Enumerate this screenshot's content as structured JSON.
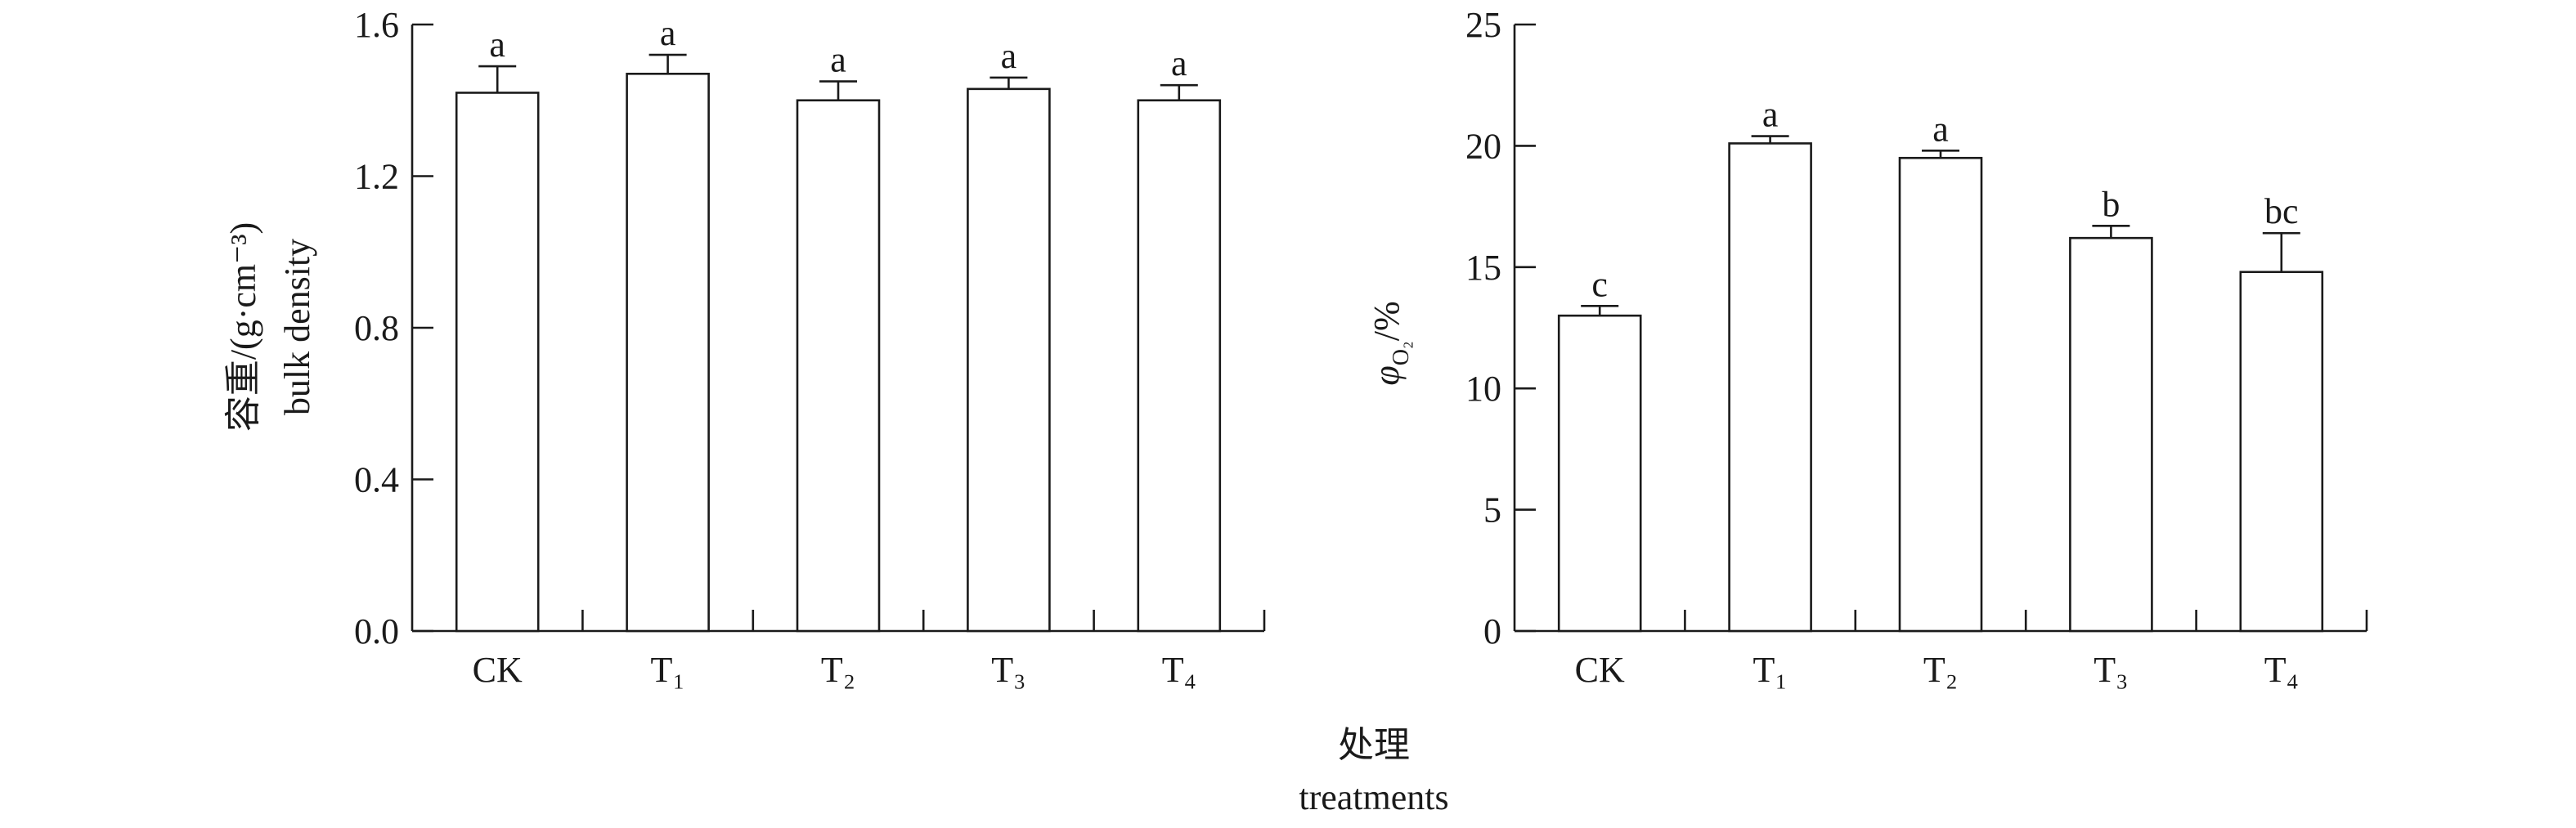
{
  "chart_data": [
    {
      "type": "bar",
      "categories": [
        "CK",
        "T₁",
        "T₂",
        "T₃",
        "T₄"
      ],
      "values": [
        1.42,
        1.47,
        1.4,
        1.43,
        1.4
      ],
      "errors": [
        0.07,
        0.05,
        0.05,
        0.03,
        0.04
      ],
      "significance": [
        "a",
        "a",
        "a",
        "a",
        "a"
      ],
      "ylabel": [
        "容重/(g·cm⁻³)",
        "bulk density"
      ],
      "xlabel": "",
      "ylim": [
        0,
        1.6
      ],
      "yticks": [
        "0.0",
        "0.4",
        "0.8",
        "1.2",
        "1.6"
      ],
      "grid": false
    },
    {
      "type": "bar",
      "categories": [
        "CK",
        "T₁",
        "T₂",
        "T₃",
        "T₄"
      ],
      "values": [
        13.0,
        20.1,
        19.5,
        16.2,
        14.8
      ],
      "errors": [
        0.4,
        0.3,
        0.3,
        0.5,
        1.6
      ],
      "significance": [
        "c",
        "a",
        "a",
        "b",
        "bc"
      ],
      "ylabel_parts": {
        "symbol": "φ",
        "subscript": "O₂",
        "unit": "/%"
      },
      "xlabel": "",
      "ylim": [
        0,
        25
      ],
      "yticks": [
        "0",
        "5",
        "10",
        "15",
        "20",
        "25"
      ],
      "grid": false
    }
  ],
  "shared_xlabel": {
    "zh": "处理",
    "en": "treatments"
  },
  "colors": {
    "bar_fill": "#ffffff",
    "stroke": "#1a1a1a"
  }
}
